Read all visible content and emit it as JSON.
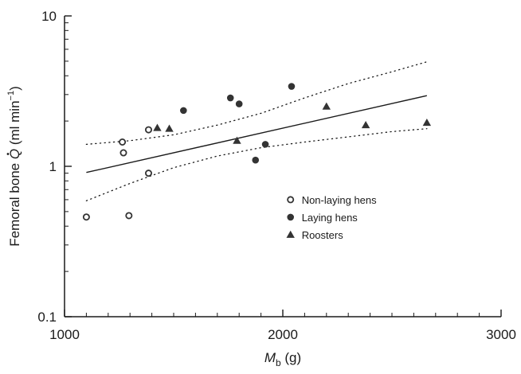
{
  "chart_data": {
    "type": "scatter",
    "title": "",
    "x_axis": {
      "scale": "linear",
      "range": [
        1000,
        3000
      ],
      "ticks": [
        1000,
        2000,
        3000
      ],
      "tick_labels": [
        "1000",
        "2000",
        "3000"
      ],
      "label_main": "M",
      "label_sub": "b",
      "label_tail": " (g)"
    },
    "y_axis": {
      "scale": "log",
      "range": [
        0.1,
        10
      ],
      "ticks": [
        0.1,
        1,
        10
      ],
      "tick_labels": [
        "0.1",
        "1",
        "10"
      ],
      "label_pre": "Femoral bone ",
      "label_q": "Q",
      "label_tail": " (ml min",
      "label_sup": "−1",
      "label_close": ")"
    },
    "grid": false,
    "legend_position": "bottom-right",
    "series": [
      {
        "name": "Non-laying hens",
        "marker": "open-circle",
        "points": [
          [
            1100,
            0.46
          ],
          [
            1265,
            1.45
          ],
          [
            1270,
            1.23
          ],
          [
            1295,
            0.47
          ],
          [
            1385,
            1.75
          ],
          [
            1385,
            0.9
          ]
        ]
      },
      {
        "name": "Laying hens",
        "marker": "filled-circle",
        "points": [
          [
            1545,
            2.35
          ],
          [
            1760,
            2.85
          ],
          [
            1800,
            2.6
          ],
          [
            1875,
            1.1
          ],
          [
            1920,
            1.4
          ],
          [
            2040,
            3.4
          ]
        ]
      },
      {
        "name": "Roosters",
        "marker": "filled-triangle",
        "points": [
          [
            1425,
            1.8
          ],
          [
            1480,
            1.78
          ],
          [
            1790,
            1.48
          ],
          [
            2200,
            2.5
          ],
          [
            2380,
            1.88
          ],
          [
            2660,
            1.95
          ]
        ]
      }
    ],
    "regression": {
      "style": "solid",
      "points": [
        [
          1100,
          0.91
        ],
        [
          2660,
          2.95
        ]
      ]
    },
    "confidence_band": {
      "style": "dotted",
      "upper": [
        [
          1100,
          1.4
        ],
        [
          1300,
          1.48
        ],
        [
          1500,
          1.62
        ],
        [
          1700,
          1.88
        ],
        [
          1900,
          2.25
        ],
        [
          2100,
          2.85
        ],
        [
          2300,
          3.55
        ],
        [
          2500,
          4.25
        ],
        [
          2660,
          4.95
        ]
      ],
      "lower": [
        [
          1100,
          0.59
        ],
        [
          1300,
          0.77
        ],
        [
          1500,
          0.98
        ],
        [
          1700,
          1.17
        ],
        [
          1900,
          1.33
        ],
        [
          2100,
          1.45
        ],
        [
          2300,
          1.57
        ],
        [
          2500,
          1.7
        ],
        [
          2660,
          1.78
        ]
      ]
    },
    "colors": {
      "axis": "#1a1a1a",
      "marker": "#333333",
      "line": "#1a1a1a"
    }
  }
}
